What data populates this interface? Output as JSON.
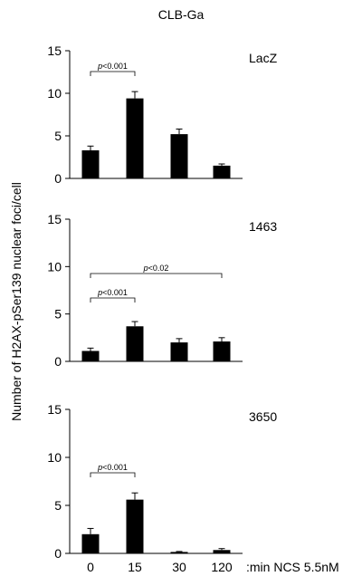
{
  "figure": {
    "title": "CLB-Ga",
    "ylabel": "Number of H2AX-pSer139 nuclear foci/cell",
    "xlabel": ":min NCS 5.5nM"
  },
  "chart_data": [
    {
      "type": "bar",
      "title": "LacZ",
      "categories": [
        "0",
        "15",
        "30",
        "120"
      ],
      "values": [
        3.3,
        9.4,
        5.2,
        1.5
      ],
      "errors": [
        0.5,
        0.8,
        0.6,
        0.2
      ],
      "ylim": [
        0,
        15
      ],
      "yticks": [
        "0",
        "5",
        "10",
        "15"
      ],
      "annotations": [
        {
          "label_prefix": "p",
          "label_suffix": "<0.001",
          "from": 0,
          "to": 1
        }
      ]
    },
    {
      "type": "bar",
      "title": "1463",
      "categories": [
        "0",
        "15",
        "30",
        "120"
      ],
      "values": [
        1.1,
        3.7,
        2.0,
        2.1
      ],
      "errors": [
        0.3,
        0.5,
        0.4,
        0.4
      ],
      "ylim": [
        0,
        15
      ],
      "yticks": [
        "0",
        "5",
        "10",
        "15"
      ],
      "annotations": [
        {
          "label_prefix": "p",
          "label_suffix": "<0.001",
          "from": 0,
          "to": 1
        },
        {
          "label_prefix": "p",
          "label_suffix": "<0.02",
          "from": 0,
          "to": 3
        }
      ]
    },
    {
      "type": "bar",
      "title": "3650",
      "categories": [
        "0",
        "15",
        "30",
        "120"
      ],
      "values": [
        2.0,
        5.6,
        0.15,
        0.35
      ],
      "errors": [
        0.6,
        0.7,
        0.05,
        0.15
      ],
      "ylim": [
        0,
        15
      ],
      "yticks": [
        "0",
        "5",
        "10",
        "15"
      ],
      "annotations": [
        {
          "label_prefix": "p",
          "label_suffix": "<0.001",
          "from": 0,
          "to": 1
        }
      ]
    }
  ]
}
